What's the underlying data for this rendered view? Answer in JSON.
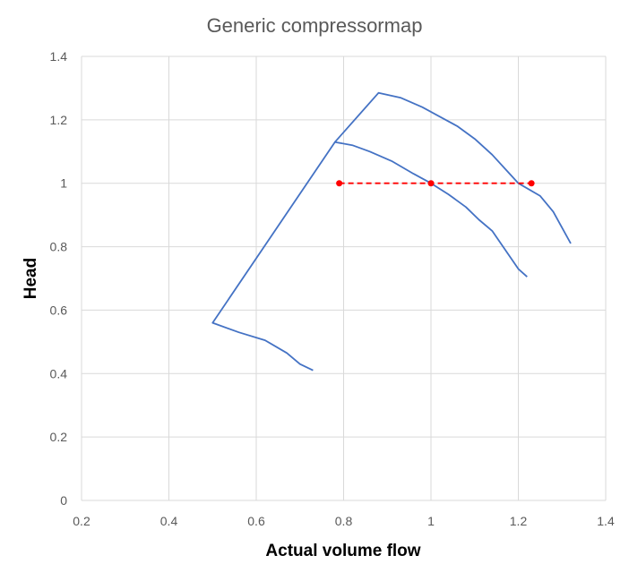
{
  "chart_data": {
    "type": "line",
    "title": "Generic compressormap",
    "xlabel": "Actual volume flow",
    "ylabel": "Head",
    "xlim": [
      0.2,
      1.4
    ],
    "ylim": [
      0,
      1.4
    ],
    "x_ticks": [
      "0.2",
      "0.4",
      "0.6",
      "0.8",
      "1",
      "1.2",
      "1.4"
    ],
    "y_ticks": [
      "0",
      "0.2",
      "0.4",
      "0.6",
      "0.8",
      "1",
      "1.2",
      "1.4"
    ],
    "x_tick_values": [
      0.2,
      0.4,
      0.6,
      0.8,
      1.0,
      1.2,
      1.4
    ],
    "y_tick_values": [
      0,
      0.2,
      0.4,
      0.6,
      0.8,
      1.0,
      1.2,
      1.4
    ],
    "grid": true,
    "legend": "none",
    "series": [
      {
        "style": "solid",
        "color": "#4472C4",
        "markers": false,
        "points": [
          [
            0.73,
            0.41
          ],
          [
            0.7,
            0.43
          ],
          [
            0.67,
            0.465
          ],
          [
            0.62,
            0.505
          ],
          [
            0.56,
            0.53
          ],
          [
            0.5,
            0.56
          ],
          [
            0.78,
            1.13
          ],
          [
            0.82,
            1.12
          ],
          [
            0.86,
            1.1
          ],
          [
            0.91,
            1.07
          ],
          [
            0.96,
            1.03
          ],
          [
            1.0,
            1.0
          ],
          [
            1.04,
            0.965
          ],
          [
            1.08,
            0.925
          ],
          [
            1.11,
            0.885
          ],
          [
            1.14,
            0.85
          ],
          [
            1.17,
            0.79
          ],
          [
            1.2,
            0.73
          ],
          [
            1.22,
            0.705
          ]
        ]
      },
      {
        "style": "solid",
        "color": "#4472C4",
        "markers": false,
        "points": [
          [
            0.78,
            1.13
          ],
          [
            0.88,
            1.285
          ],
          [
            0.93,
            1.27
          ],
          [
            0.98,
            1.24
          ],
          [
            1.02,
            1.21
          ],
          [
            1.06,
            1.18
          ],
          [
            1.1,
            1.14
          ],
          [
            1.14,
            1.09
          ],
          [
            1.18,
            1.03
          ],
          [
            1.2,
            1.0
          ],
          [
            1.25,
            0.96
          ],
          [
            1.28,
            0.91
          ],
          [
            1.32,
            0.81
          ]
        ]
      },
      {
        "style": "dashed",
        "color": "#FF0000",
        "markers": true,
        "points": [
          [
            0.79,
            1.0
          ],
          [
            1.0,
            1.0
          ],
          [
            1.23,
            1.0
          ]
        ]
      }
    ]
  }
}
